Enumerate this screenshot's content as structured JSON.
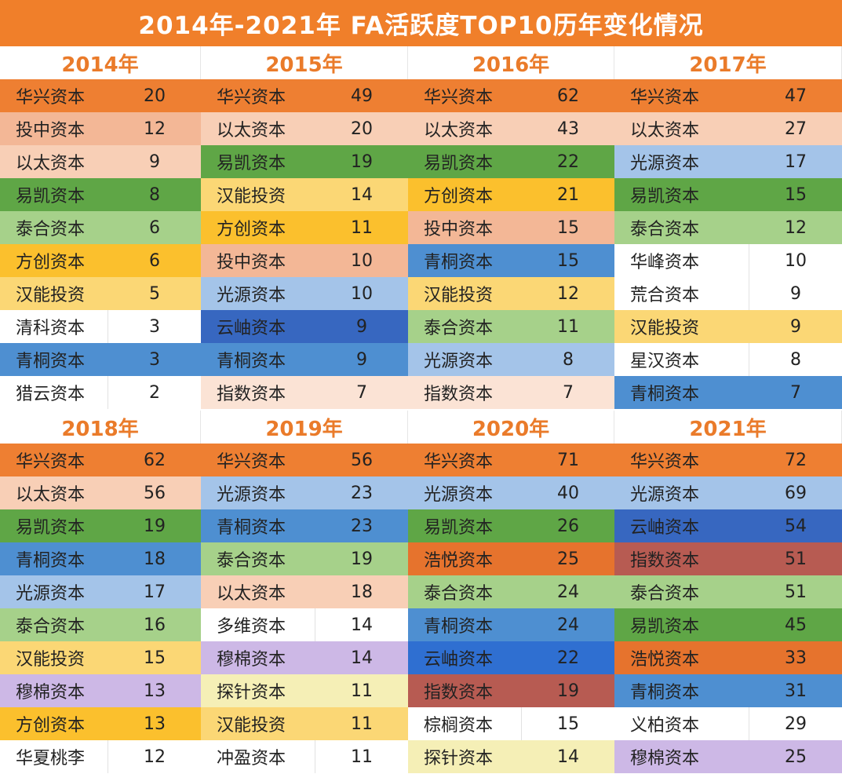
{
  "title": "2014年-2021年 FA活跃度TOP10历年变化情况",
  "colors": {
    "title_bg": "#f07f2a",
    "year_text": "#ea7b2a",
    "华兴资本": "#ee7f32",
    "投中资本": "#f3b796",
    "以太资本": "#f8cfb6",
    "易凯资本": "#5fa646",
    "泰合资本": "#a6d18a",
    "方创资本": "#fbc02d",
    "汉能投资": "#fbd775",
    "清科资本": "#ffffff",
    "青桐资本": "#4e8fd1",
    "猎云资本": "#ffffff",
    "云岫资本": "#3767c0",
    "光源资本": "#a4c4e9",
    "指数资本": "#fbe3d5",
    "华峰资本": "#ffffff",
    "荒合资本": "#ffffff",
    "星汉资本": "#ffffff",
    "穆棉资本": "#cdb8e6",
    "华夏桃李": "#ffffff",
    "多维资本": "#ffffff",
    "探针资本": "#f5efb6",
    "冲盈资本": "#ffffff",
    "浩悦资本": "#e6732d",
    "棕榈资本": "#ffffff",
    "义柏资本": "#ffffff",
    "指数资本_2020": "#b75b52",
    "指数资本_2021": "#b75b52",
    "云岫资本_2020": "#2f6fd1"
  },
  "chart_data": {
    "type": "table",
    "title": "2014年-2021年 FA活跃度TOP10历年变化情况",
    "years": [
      {
        "year": "2014年",
        "rows": [
          {
            "name": "华兴资本",
            "value": 20
          },
          {
            "name": "投中资本",
            "value": 12
          },
          {
            "name": "以太资本",
            "value": 9
          },
          {
            "name": "易凯资本",
            "value": 8
          },
          {
            "name": "泰合资本",
            "value": 6
          },
          {
            "name": "方创资本",
            "value": 6
          },
          {
            "name": "汉能投资",
            "value": 5
          },
          {
            "name": "清科资本",
            "value": 3
          },
          {
            "name": "青桐资本",
            "value": 3
          },
          {
            "name": "猎云资本",
            "value": 2
          }
        ]
      },
      {
        "year": "2015年",
        "rows": [
          {
            "name": "华兴资本",
            "value": 49
          },
          {
            "name": "以太资本",
            "value": 20
          },
          {
            "name": "易凯资本",
            "value": 19
          },
          {
            "name": "汉能投资",
            "value": 14
          },
          {
            "name": "方创资本",
            "value": 11
          },
          {
            "name": "投中资本",
            "value": 10
          },
          {
            "name": "光源资本",
            "value": 10
          },
          {
            "name": "云岫资本",
            "value": 9
          },
          {
            "name": "青桐资本",
            "value": 9
          },
          {
            "name": "指数资本",
            "value": 7
          }
        ]
      },
      {
        "year": "2016年",
        "rows": [
          {
            "name": "华兴资本",
            "value": 62
          },
          {
            "name": "以太资本",
            "value": 43
          },
          {
            "name": "易凯资本",
            "value": 22
          },
          {
            "name": "方创资本",
            "value": 21
          },
          {
            "name": "投中资本",
            "value": 15
          },
          {
            "name": "青桐资本",
            "value": 15
          },
          {
            "name": "汉能投资",
            "value": 12
          },
          {
            "name": "泰合资本",
            "value": 11
          },
          {
            "name": "光源资本",
            "value": 8
          },
          {
            "name": "指数资本",
            "value": 7
          }
        ]
      },
      {
        "year": "2017年",
        "rows": [
          {
            "name": "华兴资本",
            "value": 47
          },
          {
            "name": "以太资本",
            "value": 27
          },
          {
            "name": "光源资本",
            "value": 17
          },
          {
            "name": "易凯资本",
            "value": 15
          },
          {
            "name": "泰合资本",
            "value": 12
          },
          {
            "name": "华峰资本",
            "value": 10
          },
          {
            "name": "荒合资本",
            "value": 9
          },
          {
            "name": "汉能投资",
            "value": 9
          },
          {
            "name": "星汉资本",
            "value": 8
          },
          {
            "name": "青桐资本",
            "value": 7
          }
        ]
      },
      {
        "year": "2018年",
        "rows": [
          {
            "name": "华兴资本",
            "value": 62
          },
          {
            "name": "以太资本",
            "value": 56
          },
          {
            "name": "易凯资本",
            "value": 19
          },
          {
            "name": "青桐资本",
            "value": 18
          },
          {
            "name": "光源资本",
            "value": 17
          },
          {
            "name": "泰合资本",
            "value": 16
          },
          {
            "name": "汉能投资",
            "value": 15
          },
          {
            "name": "穆棉资本",
            "value": 13
          },
          {
            "name": "方创资本",
            "value": 13
          },
          {
            "name": "华夏桃李",
            "value": 12
          }
        ]
      },
      {
        "year": "2019年",
        "rows": [
          {
            "name": "华兴资本",
            "value": 56
          },
          {
            "name": "光源资本",
            "value": 23
          },
          {
            "name": "青桐资本",
            "value": 23
          },
          {
            "name": "泰合资本",
            "value": 19
          },
          {
            "name": "以太资本",
            "value": 18
          },
          {
            "name": "多维资本",
            "value": 14
          },
          {
            "name": "穆棉资本",
            "value": 14
          },
          {
            "name": "探针资本",
            "value": 11
          },
          {
            "name": "汉能投资",
            "value": 11
          },
          {
            "name": "冲盈资本",
            "value": 11
          }
        ]
      },
      {
        "year": "2020年",
        "rows": [
          {
            "name": "华兴资本",
            "value": 71
          },
          {
            "name": "光源资本",
            "value": 40
          },
          {
            "name": "易凯资本",
            "value": 26
          },
          {
            "name": "浩悦资本",
            "value": 25
          },
          {
            "name": "泰合资本",
            "value": 24
          },
          {
            "name": "青桐资本",
            "value": 24
          },
          {
            "name": "云岫资本",
            "value": 22
          },
          {
            "name": "指数资本",
            "value": 19
          },
          {
            "name": "棕榈资本",
            "value": 15
          },
          {
            "name": "探针资本",
            "value": 14
          }
        ]
      },
      {
        "year": "2021年",
        "rows": [
          {
            "name": "华兴资本",
            "value": 72
          },
          {
            "name": "光源资本",
            "value": 69
          },
          {
            "name": "云岫资本",
            "value": 54
          },
          {
            "name": "指数资本",
            "value": 51
          },
          {
            "name": "泰合资本",
            "value": 51
          },
          {
            "name": "易凯资本",
            "value": 45
          },
          {
            "name": "浩悦资本",
            "value": 33
          },
          {
            "name": "青桐资本",
            "value": 31
          },
          {
            "name": "义柏资本",
            "value": 29
          },
          {
            "name": "穆棉资本",
            "value": 25
          }
        ]
      }
    ]
  }
}
